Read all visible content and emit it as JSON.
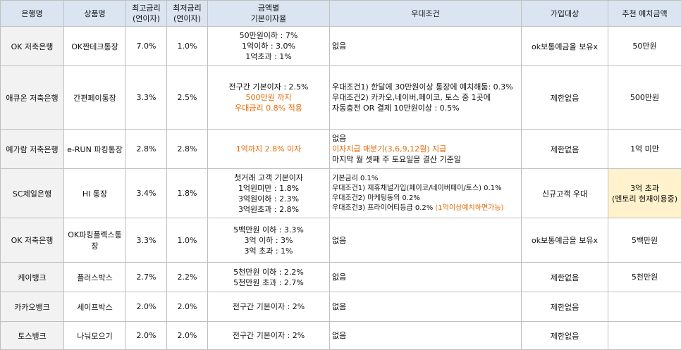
{
  "headers": [
    "은행명",
    "상품명",
    "최고금리\n(연이자)",
    "최저금리\n(연이자)",
    "금액별\n기본이자율",
    "우대조건",
    "가입대상",
    "추천 예치금액"
  ],
  "rows": [
    {
      "bank": "OK 저축은행",
      "product": "OK짠테크통장",
      "max_rate": "7.0%",
      "min_rate": "1.0%",
      "tiers": [
        {
          "text": "50만원이하 : 7%"
        },
        {
          "text": "1억이하 : 3.0%"
        },
        {
          "text": "1억초과 : 1%"
        }
      ],
      "conditions": [
        {
          "text": "없음"
        }
      ],
      "eligibility": "ok보통예금을 보유x",
      "recommended": "50만원"
    },
    {
      "bank": "애큐온 저축은행",
      "product": "간편페이통장",
      "max_rate": "3.3%",
      "min_rate": "2.5%",
      "tiers": [
        {
          "text": "전구간 기본이자 : 2.5%"
        },
        {
          "text": "500만원 까지",
          "accent": true
        },
        {
          "text": "우대금리 0.8% 적용",
          "accent": true
        }
      ],
      "conditions": [
        {
          "text": "우대조건1) 한달에 30만원이상 통장에 예치해둠: 0.3%"
        },
        {
          "text": "우대조건2) 카카오,네이버,페이코, 토스 중 1곳에"
        },
        {
          "text": "자동충전 OR 결제 10만원이상 : 0.5%"
        }
      ],
      "eligibility": "제한없음",
      "recommended": "500만원"
    },
    {
      "bank": "예가람 저축은행",
      "product": "e-RUN 파킹통장",
      "max_rate": "2.8%",
      "min_rate": "2.8%",
      "tiers": [
        {
          "text": "1억까지 2.8% 이자",
          "accent": true
        }
      ],
      "conditions": [
        {
          "text": "없음"
        },
        {
          "text": "이자지급 매분기(3,6,9,12월)  지급",
          "accent": true
        },
        {
          "text": "마지막 월 셋째 주 토요일을 결산 기준일"
        }
      ],
      "eligibility": "제한없음",
      "recommended": "1억 미만"
    },
    {
      "bank": "SC제일은행",
      "product": "HI 통장",
      "max_rate": "3.4%",
      "min_rate": "1.8%",
      "tiers": [
        {
          "text": "첫거래 고객 기본이자"
        },
        {
          "text": "1억원미만 : 1.8%"
        },
        {
          "text": "3억원이하 : 2.3%"
        },
        {
          "text": "3억원초과 : 2.8%"
        }
      ],
      "conditions": [
        {
          "text": "기본금리 0.1%"
        },
        {
          "text": "우대조건1) 제휴채널가입(페이코/네이버페이/토스) 0.1%"
        },
        {
          "text": "우대조건2) 마케팅동의 0.2%"
        },
        {
          "text": "우대조건3) 프라이어티등급 0.2% ",
          "accent_suffix": "(1억이상예치하면가능)"
        }
      ],
      "eligibility": "신규고객 우대",
      "recommended": "3억 초과\n(멘토리 현재이용중)",
      "recommended_highlight": true
    },
    {
      "bank": "OK 저축은행",
      "product": "OK파킹플렉스통장",
      "max_rate": "3.3%",
      "min_rate": "1.0%",
      "tiers": [
        {
          "text": "5백만원 이하 : 3.3%"
        },
        {
          "text": "3억 이하 : 3%"
        },
        {
          "text": "3억 초과 : 1%"
        }
      ],
      "conditions": [
        {
          "text": "없음"
        }
      ],
      "eligibility": "ok보통예금을 보유x",
      "recommended": "5백만원"
    },
    {
      "bank": "케이뱅크",
      "product": "플러스박스",
      "max_rate": "2.7%",
      "min_rate": "2.2%",
      "tiers": [
        {
          "text": "5천만원 이하 : 2.2%"
        },
        {
          "text": "5천만원 초과 : 2.7%"
        }
      ],
      "conditions": [
        {
          "text": "없음"
        }
      ],
      "eligibility": "제한없음",
      "recommended": "5천만원"
    },
    {
      "bank": "카카오뱅크",
      "product": "세이프박스",
      "max_rate": "2.0%",
      "min_rate": "2.0%",
      "tiers": [
        {
          "text": "전구간 기본이자 : 2%"
        }
      ],
      "conditions": [
        {
          "text": "없음"
        }
      ],
      "eligibility": "제한없음",
      "recommended": ""
    },
    {
      "bank": "토스뱅크",
      "product": "나눠모으기",
      "max_rate": "2.0%",
      "min_rate": "2.0%",
      "tiers": [
        {
          "text": "전구간 기본이자 : 2%"
        }
      ],
      "conditions": [
        {
          "text": "없음"
        }
      ],
      "eligibility": "제한없음",
      "recommended": ""
    }
  ],
  "colors": {
    "header_bg": "#dbe5f1",
    "first_col_bg": "#f2f2f2",
    "accent": "#e36c09",
    "highlight_bg": "#fff2cc",
    "border": "#bfbfbf"
  }
}
